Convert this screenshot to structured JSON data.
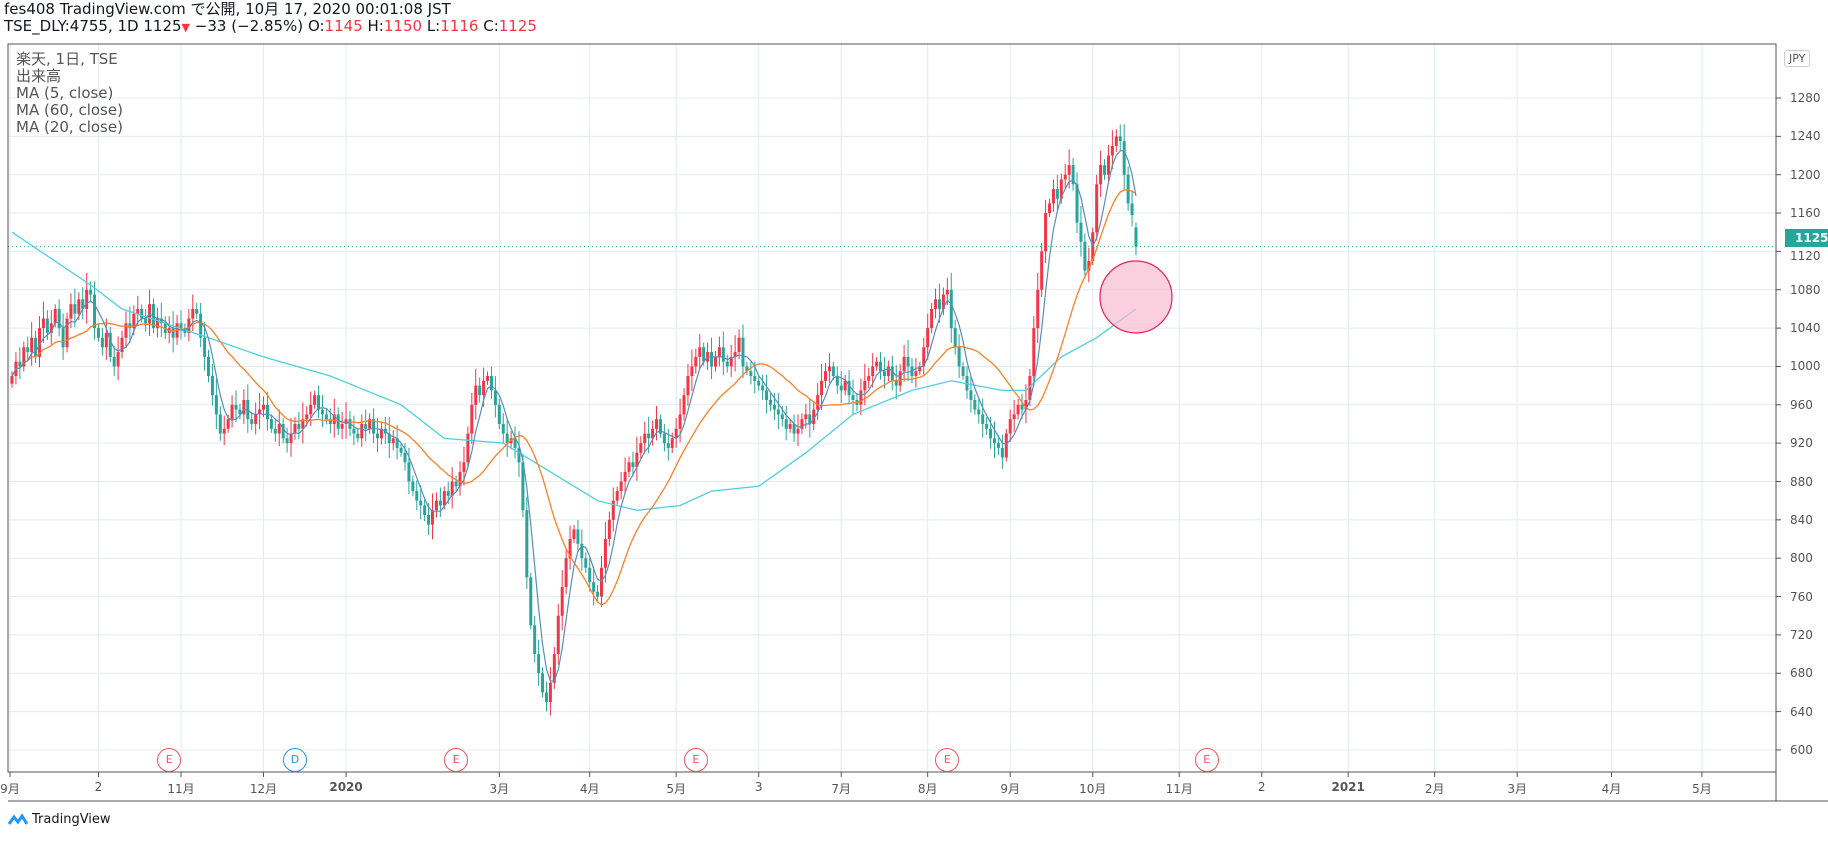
{
  "header": {
    "line1": "fes408 TradingView.com で公開, 10月 17, 2020 00:01:08 JST",
    "symbol": "TSE_DLY:4755, 1D 1125",
    "arrow": "▼",
    "change": "−33 (−2.85%)",
    "o_label": "O:",
    "o": "1145",
    "h_label": "H:",
    "h": "1150",
    "l_label": "L:",
    "l": "1116",
    "c_label": "C:",
    "c": "1125"
  },
  "legend": [
    "楽天, 1日, TSE",
    "出来高",
    "MA (5, close)",
    "MA (60, close)",
    "MA (20, close)"
  ],
  "price_axis": {
    "currency": "JPY",
    "current_price_label": "1125"
  },
  "events": [
    {
      "label": "E",
      "type": "earnings",
      "bar": 40
    },
    {
      "label": "D",
      "type": "dividend",
      "bar": 72
    },
    {
      "label": "E",
      "type": "earnings",
      "bar": 113
    },
    {
      "label": "E",
      "type": "earnings",
      "bar": 174
    },
    {
      "label": "E",
      "type": "earnings",
      "bar": 238
    },
    {
      "label": "E",
      "type": "earnings",
      "bar": 304
    }
  ],
  "footer": {
    "brand": "TradingView"
  },
  "colors": {
    "up": "#f23645",
    "down": "#26a69a",
    "ma5": "#5b8db8",
    "ma20": "#ff7f27",
    "ma60": "#4dd0e1",
    "grid": "#e1ecf2",
    "highlight": "#f8bbd0"
  },
  "chart_data": {
    "type": "candlestick",
    "title": "楽天, 1日, TSE",
    "ylabel": "JPY",
    "ylim": [
      580,
      1300
    ],
    "yticks": [
      600,
      640,
      680,
      720,
      760,
      800,
      840,
      880,
      920,
      960,
      1000,
      1040,
      1080,
      1120,
      1160,
      1200,
      1240,
      1280
    ],
    "xticks": [
      {
        "label": "9月",
        "bar": -1
      },
      {
        "label": "2",
        "bar": 22
      },
      {
        "label": "11月",
        "bar": 43
      },
      {
        "label": "12月",
        "bar": 64
      },
      {
        "label": "2020",
        "bar": 85,
        "bold": true
      },
      {
        "label": "3月",
        "bar": 124
      },
      {
        "label": "4月",
        "bar": 147
      },
      {
        "label": "5月",
        "bar": 169
      },
      {
        "label": "3",
        "bar": 190
      },
      {
        "label": "7月",
        "bar": 211
      },
      {
        "label": "8月",
        "bar": 233
      },
      {
        "label": "9月",
        "bar": 254
      },
      {
        "label": "10月",
        "bar": 275
      },
      {
        "label": "11月",
        "bar": 297
      },
      {
        "label": "2",
        "bar": 318
      },
      {
        "label": "2021",
        "bar": 340,
        "bold": true
      },
      {
        "label": "2月",
        "bar": 362
      },
      {
        "label": "3月",
        "bar": 383
      },
      {
        "label": "4月",
        "bar": 407
      },
      {
        "label": "5月",
        "bar": 430
      }
    ],
    "grid": true,
    "last_bar": {
      "open": 1145,
      "high": 1150,
      "low": 1116,
      "close": 1125
    },
    "close": [
      990,
      1005,
      1000,
      1020,
      1015,
      1030,
      1010,
      1040,
      1050,
      1035,
      1045,
      1060,
      1040,
      1020,
      1050,
      1065,
      1055,
      1070,
      1060,
      1080,
      1075,
      1040,
      1030,
      1020,
      1035,
      1010,
      1000,
      1015,
      1030,
      1045,
      1040,
      1055,
      1060,
      1050,
      1045,
      1065,
      1040,
      1050,
      1045,
      1035,
      1040,
      1030,
      1045,
      1040,
      1035,
      1050,
      1060,
      1055,
      1030,
      1010,
      990,
      970,
      950,
      930,
      935,
      945,
      960,
      955,
      950,
      965,
      945,
      940,
      950,
      955,
      960,
      945,
      935,
      930,
      940,
      925,
      920,
      930,
      940,
      935,
      945,
      950,
      960,
      970,
      955,
      950,
      945,
      940,
      950,
      935,
      940,
      945,
      935,
      930,
      925,
      940,
      935,
      945,
      930,
      925,
      935,
      930,
      920,
      925,
      915,
      910,
      900,
      880,
      870,
      860,
      855,
      845,
      835,
      850,
      860,
      855,
      870,
      865,
      880,
      875,
      890,
      900,
      930,
      960,
      980,
      970,
      985,
      990,
      975,
      960,
      940,
      930,
      920,
      925,
      915,
      900,
      850,
      780,
      730,
      700,
      680,
      660,
      650,
      670,
      700,
      740,
      770,
      800,
      820,
      830,
      815,
      800,
      790,
      775,
      765,
      760,
      790,
      820,
      840,
      860,
      870,
      880,
      890,
      900,
      895,
      910,
      920,
      930,
      925,
      935,
      945,
      930,
      920,
      915,
      925,
      935,
      950,
      970,
      990,
      1000,
      1010,
      1020,
      1005,
      1015,
      1000,
      1010,
      1020,
      1005,
      1000,
      1010,
      1015,
      1030,
      1000,
      995,
      990,
      985,
      980,
      975,
      965,
      960,
      955,
      950,
      945,
      935,
      940,
      930,
      935,
      945,
      950,
      940,
      955,
      970,
      985,
      995,
      1000,
      990,
      980,
      975,
      985,
      970,
      965,
      960,
      975,
      985,
      990,
      1000,
      1005,
      995,
      990,
      1000,
      985,
      980,
      995,
      1010,
      1000,
      990,
      995,
      1000,
      1020,
      1040,
      1060,
      1070,
      1060,
      1075,
      1080,
      1040,
      1020,
      1000,
      990,
      975,
      965,
      955,
      950,
      940,
      935,
      925,
      920,
      915,
      905,
      930,
      945,
      950,
      960,
      955,
      965,
      990,
      1040,
      1080,
      1120,
      1160,
      1170,
      1185,
      1175,
      1195,
      1200,
      1210,
      1190,
      1150,
      1130,
      1100,
      1110,
      1140,
      1190,
      1210,
      1200,
      1220,
      1230,
      1240,
      1235,
      1200,
      1170,
      1158,
      1125
    ],
    "ma60_points": [
      [
        0,
        1140
      ],
      [
        20,
        1085
      ],
      [
        28,
        1060
      ],
      [
        50,
        1030
      ],
      [
        64,
        1010
      ],
      [
        81,
        990
      ],
      [
        99,
        960
      ],
      [
        110,
        925
      ],
      [
        125,
        920
      ],
      [
        137,
        890
      ],
      [
        149,
        860
      ],
      [
        159,
        850
      ],
      [
        170,
        855
      ],
      [
        178,
        870
      ],
      [
        190,
        875
      ],
      [
        202,
        910
      ],
      [
        214,
        950
      ],
      [
        229,
        975
      ],
      [
        239,
        985
      ],
      [
        252,
        975
      ],
      [
        258,
        975
      ],
      [
        267,
        1010
      ],
      [
        276,
        1030
      ],
      [
        286,
        1060
      ]
    ],
    "series": [
      {
        "name": "MA (5, close)"
      },
      {
        "name": "MA (20, close)"
      },
      {
        "name": "MA (60, close)"
      }
    ]
  }
}
